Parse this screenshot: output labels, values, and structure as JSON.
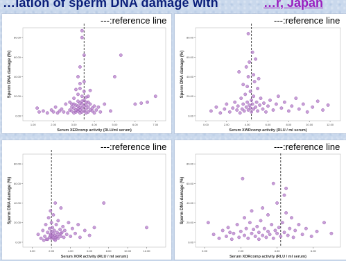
{
  "title": {
    "main": "…iation of sperm DNA damage with ",
    "link": "…r, Japan"
  },
  "colors": {
    "point_fill": "#b57fc9",
    "point_stroke": "#8e4fa8",
    "reference_line": "#333333",
    "background": "#c9d8ec"
  },
  "chart_data": [
    {
      "type": "scatter",
      "note": "---:reference line",
      "xlabel": "Serum XERcomp activity (RLU/ml serum)",
      "ylabel": "Sperm DNA damage (%)",
      "xticks": [
        "1.00",
        "2.00",
        "3.00",
        "4.00",
        "5.00",
        "6.00",
        "7.00"
      ],
      "yticks": [
        "0.00",
        "20.00",
        "40.00",
        "60.00",
        "80.00"
      ],
      "xlim": [
        0.5,
        7.5
      ],
      "ylim": [
        -5,
        90
      ],
      "reference_x": 3.5,
      "points": [
        [
          1.2,
          8
        ],
        [
          1.3,
          4
        ],
        [
          1.5,
          5
        ],
        [
          1.7,
          3
        ],
        [
          1.9,
          6
        ],
        [
          2.0,
          4
        ],
        [
          2.1,
          9
        ],
        [
          2.2,
          3
        ],
        [
          2.3,
          5
        ],
        [
          2.4,
          7
        ],
        [
          2.5,
          4
        ],
        [
          2.6,
          12
        ],
        [
          2.7,
          3
        ],
        [
          2.8,
          6
        ],
        [
          2.8,
          14
        ],
        [
          2.9,
          5
        ],
        [
          2.9,
          9
        ],
        [
          3.0,
          3
        ],
        [
          3.0,
          8
        ],
        [
          3.0,
          18
        ],
        [
          3.1,
          4
        ],
        [
          3.1,
          11
        ],
        [
          3.1,
          27
        ],
        [
          3.2,
          5
        ],
        [
          3.2,
          7
        ],
        [
          3.2,
          15
        ],
        [
          3.2,
          22
        ],
        [
          3.3,
          3
        ],
        [
          3.3,
          6
        ],
        [
          3.3,
          9
        ],
        [
          3.3,
          13
        ],
        [
          3.3,
          33
        ],
        [
          3.3,
          50
        ],
        [
          3.4,
          4
        ],
        [
          3.4,
          8
        ],
        [
          3.4,
          12
        ],
        [
          3.4,
          20
        ],
        [
          3.4,
          80
        ],
        [
          3.4,
          87
        ],
        [
          3.5,
          5
        ],
        [
          3.5,
          10
        ],
        [
          3.5,
          16
        ],
        [
          3.5,
          25
        ],
        [
          3.5,
          62
        ],
        [
          3.6,
          3
        ],
        [
          3.6,
          7
        ],
        [
          3.6,
          11
        ],
        [
          3.6,
          19
        ],
        [
          3.7,
          4
        ],
        [
          3.7,
          9
        ],
        [
          3.7,
          14
        ],
        [
          3.8,
          6
        ],
        [
          3.8,
          12
        ],
        [
          3.8,
          26
        ],
        [
          3.9,
          5
        ],
        [
          3.9,
          8
        ],
        [
          4.0,
          3
        ],
        [
          4.0,
          10
        ],
        [
          4.1,
          6
        ],
        [
          4.2,
          9
        ],
        [
          4.3,
          4
        ],
        [
          4.5,
          12
        ],
        [
          4.8,
          5
        ],
        [
          5.0,
          40
        ],
        [
          5.3,
          62
        ],
        [
          6.0,
          12
        ],
        [
          6.3,
          13
        ],
        [
          6.6,
          14
        ],
        [
          7.0,
          20
        ],
        [
          3.0,
          12
        ],
        [
          3.1,
          6
        ],
        [
          3.2,
          10
        ],
        [
          3.4,
          15
        ],
        [
          3.6,
          14
        ],
        [
          2.9,
          12
        ],
        [
          3.7,
          20
        ],
        [
          3.3,
          28
        ],
        [
          3.5,
          35
        ],
        [
          3.2,
          40
        ]
      ]
    },
    {
      "type": "scatter",
      "note": "---:reference line",
      "xlabel": "Serum XWRcomp activity (RLU / ml serum)",
      "ylabel": "Sperm DNA damage (%)",
      "xticks": [
        "0.00",
        "2.00",
        "4.00",
        "6.00",
        "8.00",
        "10.00",
        "12.00"
      ],
      "yticks": [
        "0.00",
        "20.00",
        "40.00",
        "60.00",
        "80.00"
      ],
      "xlim": [
        -1,
        13
      ],
      "ylim": [
        -5,
        90
      ],
      "reference_x": 4.4,
      "points": [
        [
          0.5,
          5
        ],
        [
          1.0,
          9
        ],
        [
          1.4,
          3
        ],
        [
          1.8,
          7
        ],
        [
          2.0,
          12
        ],
        [
          2.3,
          4
        ],
        [
          2.6,
          8
        ],
        [
          2.8,
          14
        ],
        [
          3.0,
          6
        ],
        [
          3.1,
          10
        ],
        [
          3.3,
          3
        ],
        [
          3.4,
          18
        ],
        [
          3.5,
          7
        ],
        [
          3.6,
          12
        ],
        [
          3.7,
          5
        ],
        [
          3.8,
          22
        ],
        [
          3.9,
          9
        ],
        [
          4.0,
          14
        ],
        [
          4.0,
          30
        ],
        [
          4.1,
          6
        ],
        [
          4.1,
          40
        ],
        [
          4.2,
          11
        ],
        [
          4.2,
          55
        ],
        [
          4.3,
          8
        ],
        [
          4.3,
          25
        ],
        [
          4.4,
          4
        ],
        [
          4.4,
          16
        ],
        [
          4.5,
          12
        ],
        [
          4.5,
          65
        ],
        [
          4.6,
          7
        ],
        [
          4.6,
          20
        ],
        [
          4.7,
          35
        ],
        [
          4.8,
          9
        ],
        [
          4.9,
          14
        ],
        [
          5.0,
          5
        ],
        [
          5.0,
          28
        ],
        [
          5.2,
          11
        ],
        [
          5.3,
          18
        ],
        [
          5.5,
          7
        ],
        [
          5.6,
          13
        ],
        [
          5.8,
          4
        ],
        [
          6.0,
          10
        ],
        [
          6.2,
          16
        ],
        [
          6.5,
          6
        ],
        [
          6.8,
          12
        ],
        [
          7.0,
          20
        ],
        [
          7.3,
          8
        ],
        [
          7.6,
          14
        ],
        [
          8.0,
          5
        ],
        [
          8.3,
          10
        ],
        [
          8.7,
          18
        ],
        [
          9.0,
          7
        ],
        [
          9.4,
          12
        ],
        [
          9.8,
          4
        ],
        [
          10.3,
          9
        ],
        [
          10.8,
          15
        ],
        [
          11.3,
          6
        ],
        [
          11.8,
          11
        ],
        [
          3.2,
          45
        ],
        [
          3.9,
          50
        ],
        [
          4.6,
          42
        ],
        [
          5.1,
          38
        ],
        [
          4.8,
          58
        ],
        [
          3.6,
          32
        ],
        [
          4.1,
          84
        ]
      ]
    },
    {
      "type": "scatter",
      "note": "---:reference line",
      "xlabel": "Serum XOR activity (RLU / ml serum)",
      "ylabel": "Sperm DNA damage (%)",
      "xticks": [
        "0.00",
        "2.00",
        "4.00",
        "6.00",
        "8.00",
        "10.00",
        "12.00"
      ],
      "yticks": [
        "0.00",
        "20.00",
        "40.00",
        "60.00",
        "80.00"
      ],
      "xlim": [
        -1,
        14
      ],
      "ylim": [
        -5,
        90
      ],
      "reference_x": 2.0,
      "points": [
        [
          0.6,
          8
        ],
        [
          0.9,
          4
        ],
        [
          1.1,
          12
        ],
        [
          1.3,
          6
        ],
        [
          1.4,
          18
        ],
        [
          1.5,
          3
        ],
        [
          1.6,
          10
        ],
        [
          1.7,
          25
        ],
        [
          1.8,
          5
        ],
        [
          1.8,
          14
        ],
        [
          1.9,
          8
        ],
        [
          1.9,
          32
        ],
        [
          2.0,
          4
        ],
        [
          2.0,
          11
        ],
        [
          2.0,
          20
        ],
        [
          2.1,
          6
        ],
        [
          2.1,
          15
        ],
        [
          2.2,
          9
        ],
        [
          2.2,
          28
        ],
        [
          2.3,
          3
        ],
        [
          2.3,
          12
        ],
        [
          2.4,
          7
        ],
        [
          2.4,
          40
        ],
        [
          2.5,
          5
        ],
        [
          2.5,
          18
        ],
        [
          2.6,
          10
        ],
        [
          2.7,
          4
        ],
        [
          2.7,
          22
        ],
        [
          2.8,
          8
        ],
        [
          2.9,
          13
        ],
        [
          3.0,
          6
        ],
        [
          3.0,
          35
        ],
        [
          3.1,
          10
        ],
        [
          3.2,
          16
        ],
        [
          3.3,
          5
        ],
        [
          3.4,
          12
        ],
        [
          3.6,
          8
        ],
        [
          3.8,
          20
        ],
        [
          4.0,
          6
        ],
        [
          4.2,
          14
        ],
        [
          4.5,
          9
        ],
        [
          4.8,
          18
        ],
        [
          5.0,
          5
        ],
        [
          5.5,
          12
        ],
        [
          6.0,
          7
        ],
        [
          6.5,
          15
        ],
        [
          7.5,
          40
        ],
        [
          1.2,
          2
        ],
        [
          1.6,
          3
        ],
        [
          2.4,
          2
        ],
        [
          12.0,
          15
        ],
        [
          2.2,
          5
        ],
        [
          1.9,
          7
        ],
        [
          2.6,
          6
        ],
        [
          3.0,
          9
        ]
      ]
    },
    {
      "type": "scatter",
      "note": "---:reference line",
      "xlabel": "Serum XDRcomp activity (RLU / ml serum)",
      "ylabel": "Sperm DNA damage (%)",
      "xticks": [
        "0.00",
        "2.00",
        "4.00",
        "6.00"
      ],
      "yticks": [
        "0.00",
        "20.00",
        "40.00",
        "60.00",
        "80.00"
      ],
      "xlim": [
        -0.5,
        7.5
      ],
      "ylim": [
        -5,
        90
      ],
      "reference_x": 4.2,
      "points": [
        [
          0.2,
          20
        ],
        [
          0.5,
          8
        ],
        [
          0.8,
          4
        ],
        [
          1.0,
          12
        ],
        [
          1.2,
          6
        ],
        [
          1.3,
          15
        ],
        [
          1.5,
          3
        ],
        [
          1.6,
          9
        ],
        [
          1.8,
          18
        ],
        [
          1.9,
          5
        ],
        [
          2.0,
          11
        ],
        [
          2.1,
          65
        ],
        [
          2.2,
          7
        ],
        [
          2.3,
          14
        ],
        [
          2.4,
          4
        ],
        [
          2.5,
          20
        ],
        [
          2.6,
          9
        ],
        [
          2.7,
          13
        ],
        [
          2.8,
          6
        ],
        [
          2.9,
          16
        ],
        [
          3.0,
          3
        ],
        [
          3.0,
          10
        ],
        [
          3.1,
          22
        ],
        [
          3.2,
          7
        ],
        [
          3.3,
          14
        ],
        [
          3.4,
          5
        ],
        [
          3.5,
          11
        ],
        [
          3.5,
          28
        ],
        [
          3.6,
          8
        ],
        [
          3.7,
          18
        ],
        [
          3.8,
          4
        ],
        [
          3.9,
          12
        ],
        [
          4.0,
          9
        ],
        [
          4.0,
          40
        ],
        [
          4.1,
          15
        ],
        [
          4.2,
          6
        ],
        [
          4.3,
          20
        ],
        [
          4.4,
          10
        ],
        [
          4.5,
          30
        ],
        [
          4.5,
          55
        ],
        [
          4.6,
          7
        ],
        [
          4.7,
          14
        ],
        [
          4.8,
          25
        ],
        [
          4.9,
          5
        ],
        [
          5.0,
          12
        ],
        [
          5.2,
          18
        ],
        [
          5.4,
          8
        ],
        [
          5.6,
          14
        ],
        [
          5.9,
          6
        ],
        [
          6.2,
          11
        ],
        [
          6.6,
          20
        ],
        [
          7.0,
          9
        ],
        [
          3.2,
          35
        ],
        [
          4.4,
          48
        ],
        [
          3.8,
          60
        ],
        [
          2.6,
          32
        ],
        [
          1.4,
          10
        ],
        [
          2.2,
          25
        ]
      ]
    }
  ]
}
